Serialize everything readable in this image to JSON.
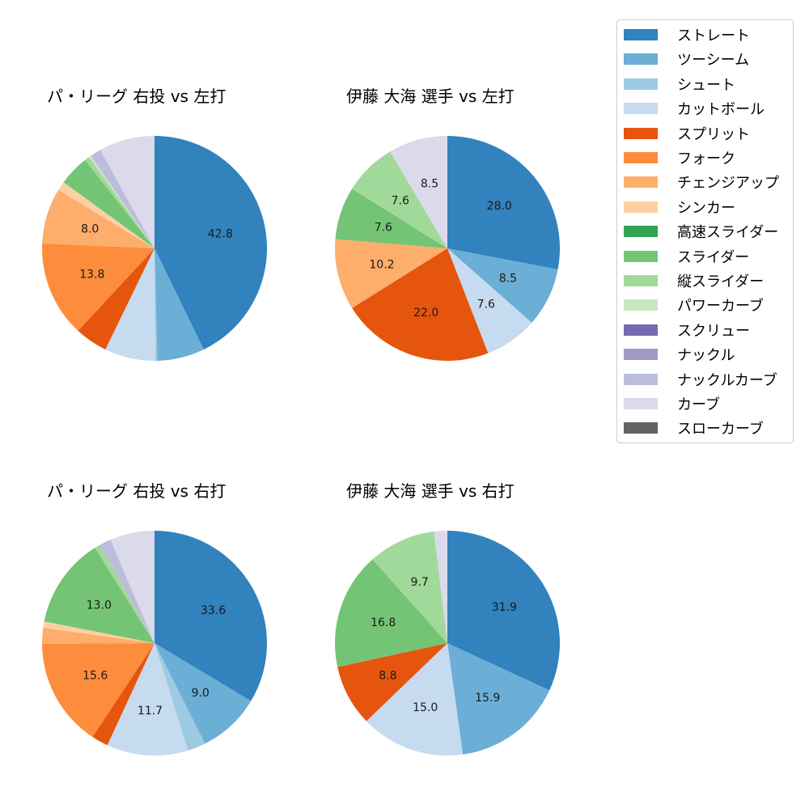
{
  "legend": {
    "items": [
      {
        "label": "ストレート",
        "color": "#3182bd"
      },
      {
        "label": "ツーシーム",
        "color": "#6baed6"
      },
      {
        "label": "シュート",
        "color": "#9ecae1"
      },
      {
        "label": "カットボール",
        "color": "#c6dbef"
      },
      {
        "label": "スプリット",
        "color": "#e6550d"
      },
      {
        "label": "フォーク",
        "color": "#fd8d3c"
      },
      {
        "label": "チェンジアップ",
        "color": "#fdae6b"
      },
      {
        "label": "シンカー",
        "color": "#fdd0a2"
      },
      {
        "label": "高速スライダー",
        "color": "#31a354"
      },
      {
        "label": "スライダー",
        "color": "#74c476"
      },
      {
        "label": "縦スライダー",
        "color": "#a1d99b"
      },
      {
        "label": "パワーカーブ",
        "color": "#c7e9c0"
      },
      {
        "label": "スクリュー",
        "color": "#756bb1"
      },
      {
        "label": "ナックル",
        "color": "#9e9ac8"
      },
      {
        "label": "ナックルカーブ",
        "color": "#bcbddc"
      },
      {
        "label": "カーブ",
        "color": "#dadaeb"
      },
      {
        "label": "スローカーブ",
        "color": "#636363"
      }
    ]
  },
  "chart_data": [
    {
      "type": "pie",
      "title": "パ・リーグ 右投 vs 左打",
      "start_angle": 90,
      "direction": "clockwise",
      "slices": [
        {
          "label": "ストレート",
          "value": 42.8,
          "shown": "42.8"
        },
        {
          "label": "ツーシーム",
          "value": 6.8,
          "shown": ""
        },
        {
          "label": "シュート",
          "value": 0.3,
          "shown": ""
        },
        {
          "label": "カットボール",
          "value": 7.3,
          "shown": ""
        },
        {
          "label": "スプリット",
          "value": 4.7,
          "shown": ""
        },
        {
          "label": "フォーク",
          "value": 13.8,
          "shown": "13.8"
        },
        {
          "label": "チェンジアップ",
          "value": 8.0,
          "shown": "8.0"
        },
        {
          "label": "シンカー",
          "value": 1.3,
          "shown": ""
        },
        {
          "label": "スライダー",
          "value": 4.4,
          "shown": ""
        },
        {
          "label": "縦スライダー",
          "value": 0.7,
          "shown": ""
        },
        {
          "label": "パワーカーブ",
          "value": 0.3,
          "shown": ""
        },
        {
          "label": "ナックルカーブ",
          "value": 1.6,
          "shown": ""
        },
        {
          "label": "カーブ",
          "value": 8.0,
          "shown": ""
        }
      ]
    },
    {
      "type": "pie",
      "title": "伊藤 大海 選手 vs 左打",
      "start_angle": 90,
      "direction": "clockwise",
      "slices": [
        {
          "label": "ストレート",
          "value": 28.0,
          "shown": "28.0"
        },
        {
          "label": "ツーシーム",
          "value": 8.5,
          "shown": "8.5"
        },
        {
          "label": "カットボール",
          "value": 7.6,
          "shown": "7.6"
        },
        {
          "label": "スプリット",
          "value": 22.0,
          "shown": "22.0"
        },
        {
          "label": "チェンジアップ",
          "value": 10.2,
          "shown": "10.2"
        },
        {
          "label": "スライダー",
          "value": 7.6,
          "shown": "7.6"
        },
        {
          "label": "縦スライダー",
          "value": 7.6,
          "shown": "7.6"
        },
        {
          "label": "カーブ",
          "value": 8.5,
          "shown": "8.5"
        }
      ]
    },
    {
      "type": "pie",
      "title": "パ・リーグ 右投 vs 右打",
      "start_angle": 90,
      "direction": "clockwise",
      "slices": [
        {
          "label": "ストレート",
          "value": 33.6,
          "shown": "33.6"
        },
        {
          "label": "ツーシーム",
          "value": 9.0,
          "shown": "9.0"
        },
        {
          "label": "シュート",
          "value": 2.6,
          "shown": ""
        },
        {
          "label": "カットボール",
          "value": 11.7,
          "shown": "11.7"
        },
        {
          "label": "スプリット",
          "value": 2.4,
          "shown": ""
        },
        {
          "label": "フォーク",
          "value": 15.6,
          "shown": "15.6"
        },
        {
          "label": "チェンジアップ",
          "value": 2.3,
          "shown": ""
        },
        {
          "label": "シンカー",
          "value": 0.9,
          "shown": ""
        },
        {
          "label": "スライダー",
          "value": 13.0,
          "shown": "13.0"
        },
        {
          "label": "縦スライダー",
          "value": 0.9,
          "shown": ""
        },
        {
          "label": "ナックルカーブ",
          "value": 1.6,
          "shown": ""
        },
        {
          "label": "カーブ",
          "value": 6.4,
          "shown": ""
        }
      ]
    },
    {
      "type": "pie",
      "title": "伊藤 大海 選手 vs 右打",
      "start_angle": 90,
      "direction": "clockwise",
      "slices": [
        {
          "label": "ストレート",
          "value": 31.9,
          "shown": "31.9"
        },
        {
          "label": "ツーシーム",
          "value": 15.9,
          "shown": "15.9"
        },
        {
          "label": "カットボール",
          "value": 15.0,
          "shown": "15.0"
        },
        {
          "label": "スプリット",
          "value": 8.8,
          "shown": "8.8"
        },
        {
          "label": "スライダー",
          "value": 16.8,
          "shown": "16.8"
        },
        {
          "label": "縦スライダー",
          "value": 9.7,
          "shown": "9.7"
        },
        {
          "label": "カーブ",
          "value": 1.9,
          "shown": ""
        }
      ]
    }
  ]
}
